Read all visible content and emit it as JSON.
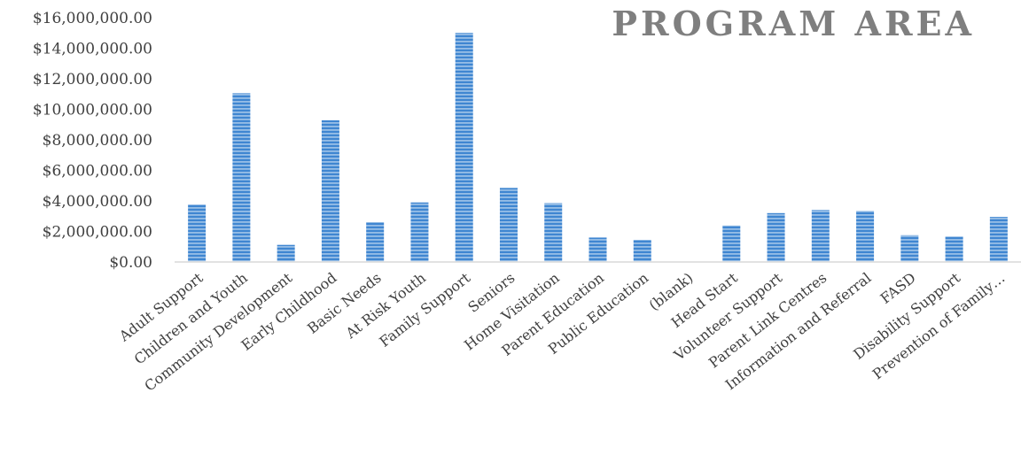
{
  "chart_data": {
    "type": "bar",
    "title": "PROGRAM AREA",
    "xlabel": "",
    "ylabel": "",
    "ylim": [
      0,
      16000000
    ],
    "yticks": [
      "$0.00",
      "$2,000,000.00",
      "$4,000,000.00",
      "$6,000,000.00",
      "$8,000,000.00",
      "$10,000,000.00",
      "$12,000,000.00",
      "$14,000,000.00",
      "$16,000,000.00"
    ],
    "categories": [
      "Adult Support",
      "Children and Youth",
      "Community Development",
      "Early Childhood",
      "Basic Needs",
      "At Risk Youth",
      "Family Support",
      "Seniors",
      "Home Visitation",
      "Parent Education",
      "Public Education",
      "(blank)",
      "Head Start",
      "Volunteer Support",
      "Parent Link Centres",
      "Information and Referral",
      "FASD",
      "Disability Support",
      "Prevention of Family…"
    ],
    "values": [
      3750000,
      11050000,
      1120000,
      9280000,
      2600000,
      3900000,
      15000000,
      4850000,
      3850000,
      1600000,
      1450000,
      0,
      2400000,
      3200000,
      3400000,
      3350000,
      1750000,
      1650000,
      2950000
    ],
    "grid": false,
    "legend": "none",
    "bar_color": "#3f86d1",
    "stripe_color": "#ffffff"
  }
}
